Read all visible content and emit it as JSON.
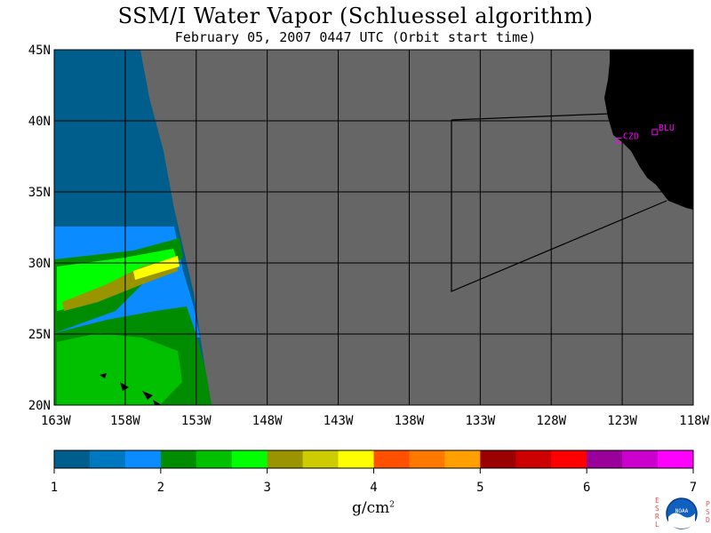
{
  "title": "SSM/I Water Vapor (Schluessel algorithm)",
  "subtitle": "February 05, 2007  0447 UTC  (Orbit start time)",
  "map": {
    "lat_labels": [
      "45N",
      "40N",
      "35N",
      "30N",
      "25N",
      "20N"
    ],
    "lon_labels": [
      "163W",
      "158W",
      "153W",
      "148W",
      "143W",
      "138W",
      "133W",
      "128W",
      "123W",
      "118W"
    ],
    "lat_range": [
      20,
      45
    ],
    "lon_range": [
      -163,
      -118
    ],
    "no_data_color": "#666666",
    "land_color": "#000000",
    "station_color": "#ff00ff",
    "stations": [
      {
        "id": "CZD",
        "lat": 38.6,
        "lon": -123.2
      },
      {
        "id": "BLU",
        "lat": 39.2,
        "lon": -120.7
      }
    ]
  },
  "colorbar": {
    "tick_labels": [
      "1",
      "2",
      "3",
      "4",
      "5",
      "6",
      "7"
    ],
    "colors": [
      "#005e8c",
      "#0078c0",
      "#0a8bff",
      "#008c00",
      "#00c000",
      "#00ff00",
      "#9a9400",
      "#cccc00",
      "#ffff00",
      "#ff5000",
      "#ff7800",
      "#ffa000",
      "#9a0000",
      "#cc0000",
      "#ff0000",
      "#9a009a",
      "#cc00cc",
      "#ff00ff"
    ],
    "units": "g/cm",
    "units_exp": "2"
  },
  "logo": {
    "left_letters": "ESRL",
    "right_letters": "PSD",
    "center": "NOAA"
  }
}
